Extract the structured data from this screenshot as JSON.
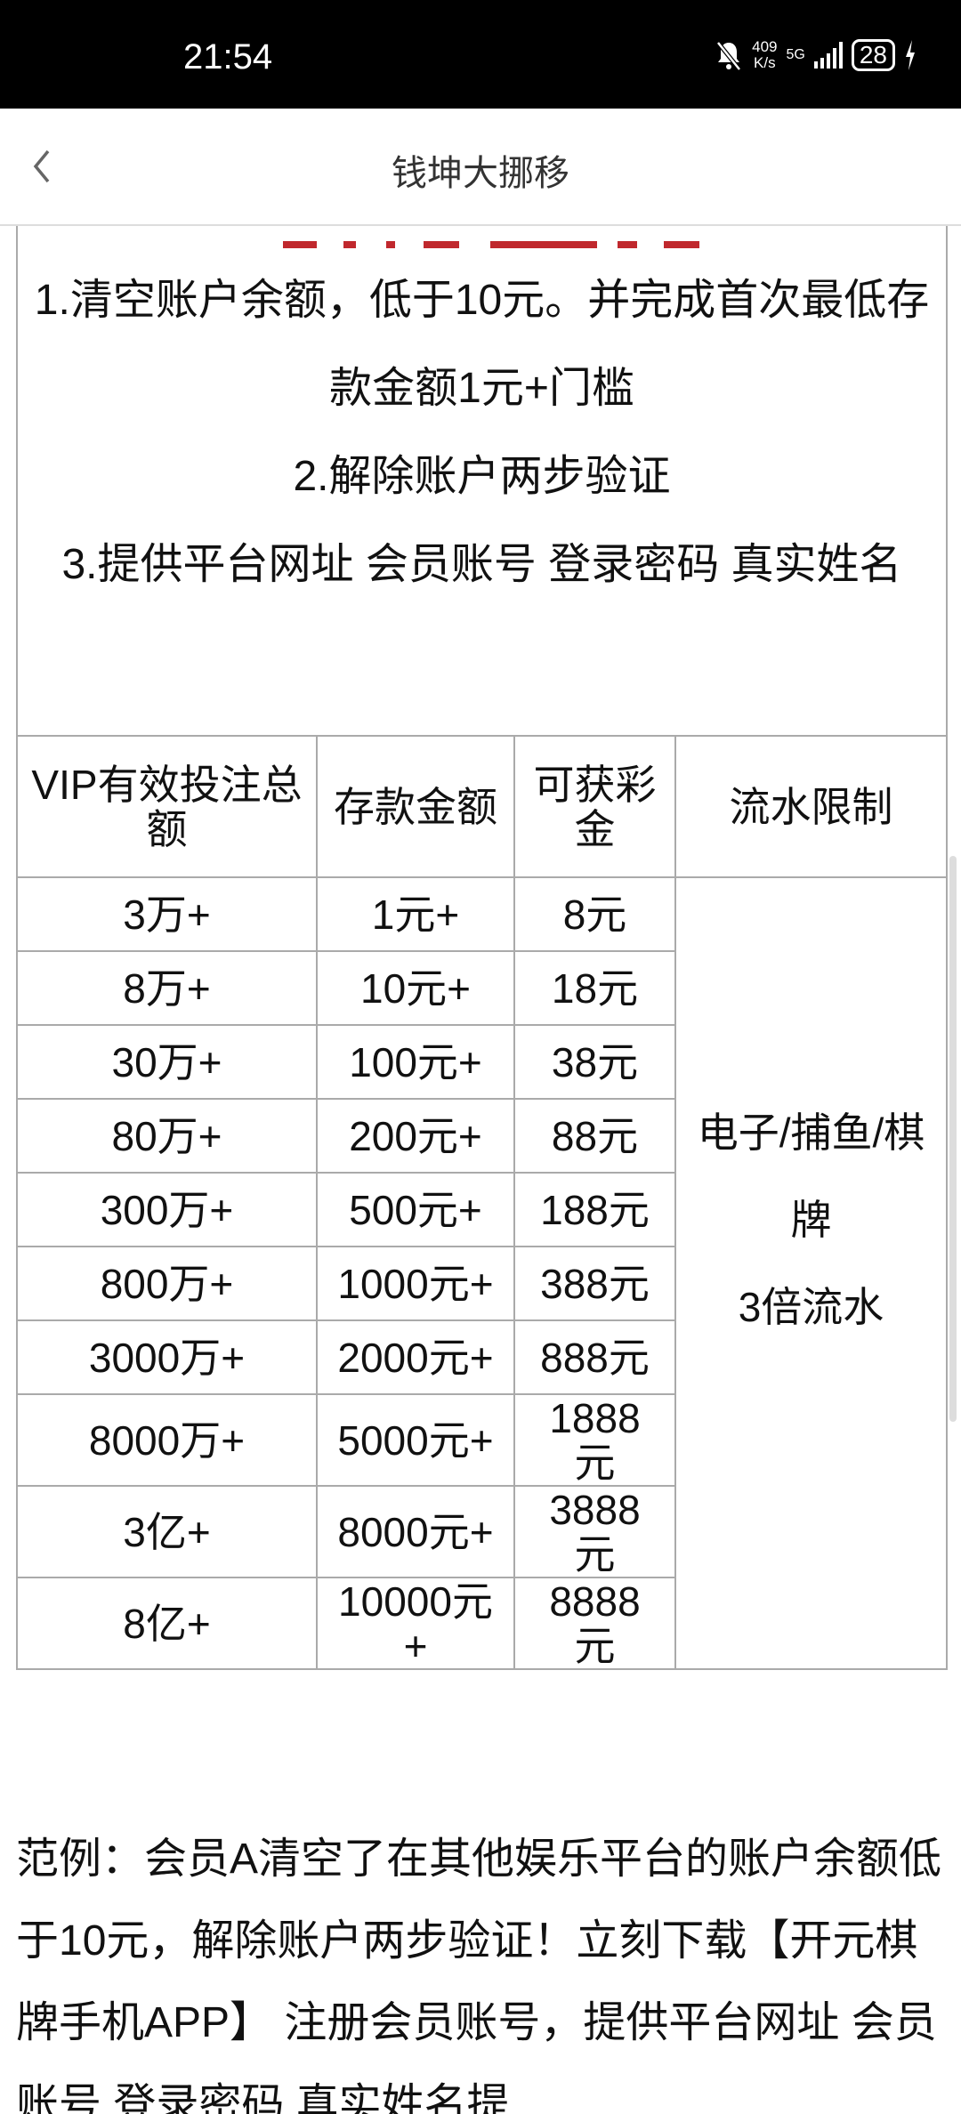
{
  "status_bar": {
    "time": "21:54",
    "net_speed_value": "409",
    "net_speed_unit": "K/s",
    "network": "5G",
    "battery": "28"
  },
  "header": {
    "title": "钱坤大挪移"
  },
  "rules": [
    "1.清空账户余额，低于10元。并完成首次最低存款金额1元+门槛",
    "2.解除账户两步验证",
    "3.提供平台网址 会员账号 登录密码 真实姓名"
  ],
  "table": {
    "headers": [
      "VIP有效投注总额",
      "存款金额",
      "可获彩金",
      "流水限制"
    ],
    "rows": [
      [
        "3万+",
        "1元+",
        "8元"
      ],
      [
        "8万+",
        "10元+",
        "18元"
      ],
      [
        "30万+",
        "100元+",
        "38元"
      ],
      [
        "80万+",
        "200元+",
        "88元"
      ],
      [
        "300万+",
        "500元+",
        "188元"
      ],
      [
        "800万+",
        "1000元+",
        "388元"
      ],
      [
        "3000万+",
        "2000元+",
        "888元"
      ],
      [
        "8000万+",
        "5000元+",
        "1888元"
      ],
      [
        "3亿+",
        "8000元+",
        "3888元"
      ],
      [
        "8亿+",
        "10000元+",
        "8888元"
      ]
    ],
    "limit_line1": "电子/捕鱼/棋牌",
    "limit_line2": "3倍流水"
  },
  "example": "范例：会员A清空了在其他娱乐平台的账户余额低于10元，解除账户两步验证！立刻下载【开元棋牌手机APP】 注册会员账号，提供平台网址 会员账号 登录密码 真实姓名提"
}
